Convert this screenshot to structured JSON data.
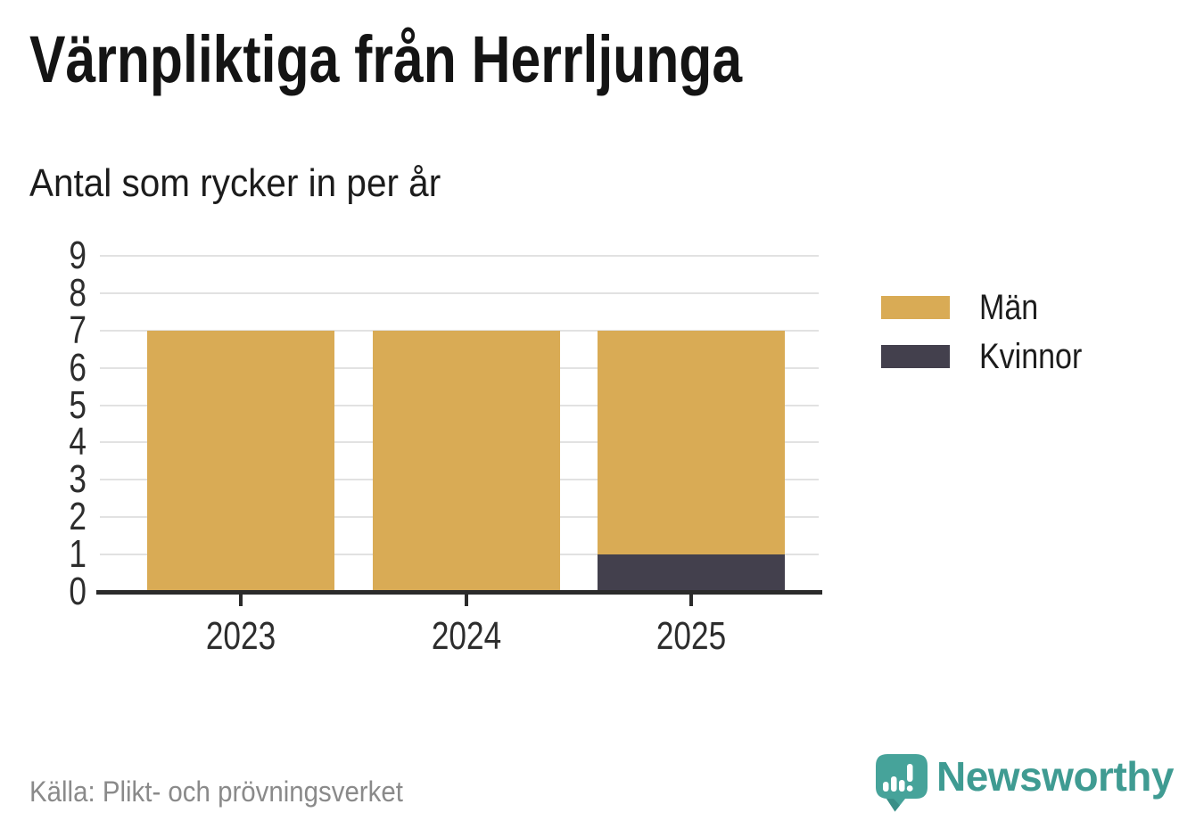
{
  "header": {
    "title": "Värnpliktiga från Herrljunga",
    "subtitle": "Antal som rycker in per år"
  },
  "chart_data": {
    "type": "bar",
    "stacked": true,
    "categories": [
      "2023",
      "2024",
      "2025"
    ],
    "series": [
      {
        "name": "Män",
        "color": "#D9AB55",
        "values": [
          7,
          7,
          6
        ]
      },
      {
        "name": "Kvinnor",
        "color": "#43404D",
        "values": [
          0,
          0,
          1
        ]
      }
    ],
    "stack_bottom_first": [
      "Kvinnor",
      "Män"
    ],
    "totals": [
      7,
      7,
      7
    ],
    "title": "Värnpliktiga från Herrljunga",
    "subtitle": "Antal som rycker in per år",
    "xlabel": "",
    "ylabel": "",
    "ylim": [
      0,
      9
    ],
    "yticks": [
      0,
      1,
      2,
      3,
      4,
      5,
      6,
      7,
      8,
      9
    ],
    "grid": true,
    "legend_position": "right"
  },
  "legend": {
    "items": [
      {
        "label": "Män",
        "color": "#D9AB55"
      },
      {
        "label": "Kvinnor",
        "color": "#43404D"
      }
    ]
  },
  "footer": {
    "source": "Källa: Plikt- och prövningsverket",
    "brand": "Newsworthy"
  },
  "colors": {
    "men": "#D9AB55",
    "women": "#43404D",
    "axis": "#2B2B2B",
    "grid": "#E2E2E2",
    "brand_teal": "#3F9B92",
    "source_text": "#8A8A8A"
  }
}
